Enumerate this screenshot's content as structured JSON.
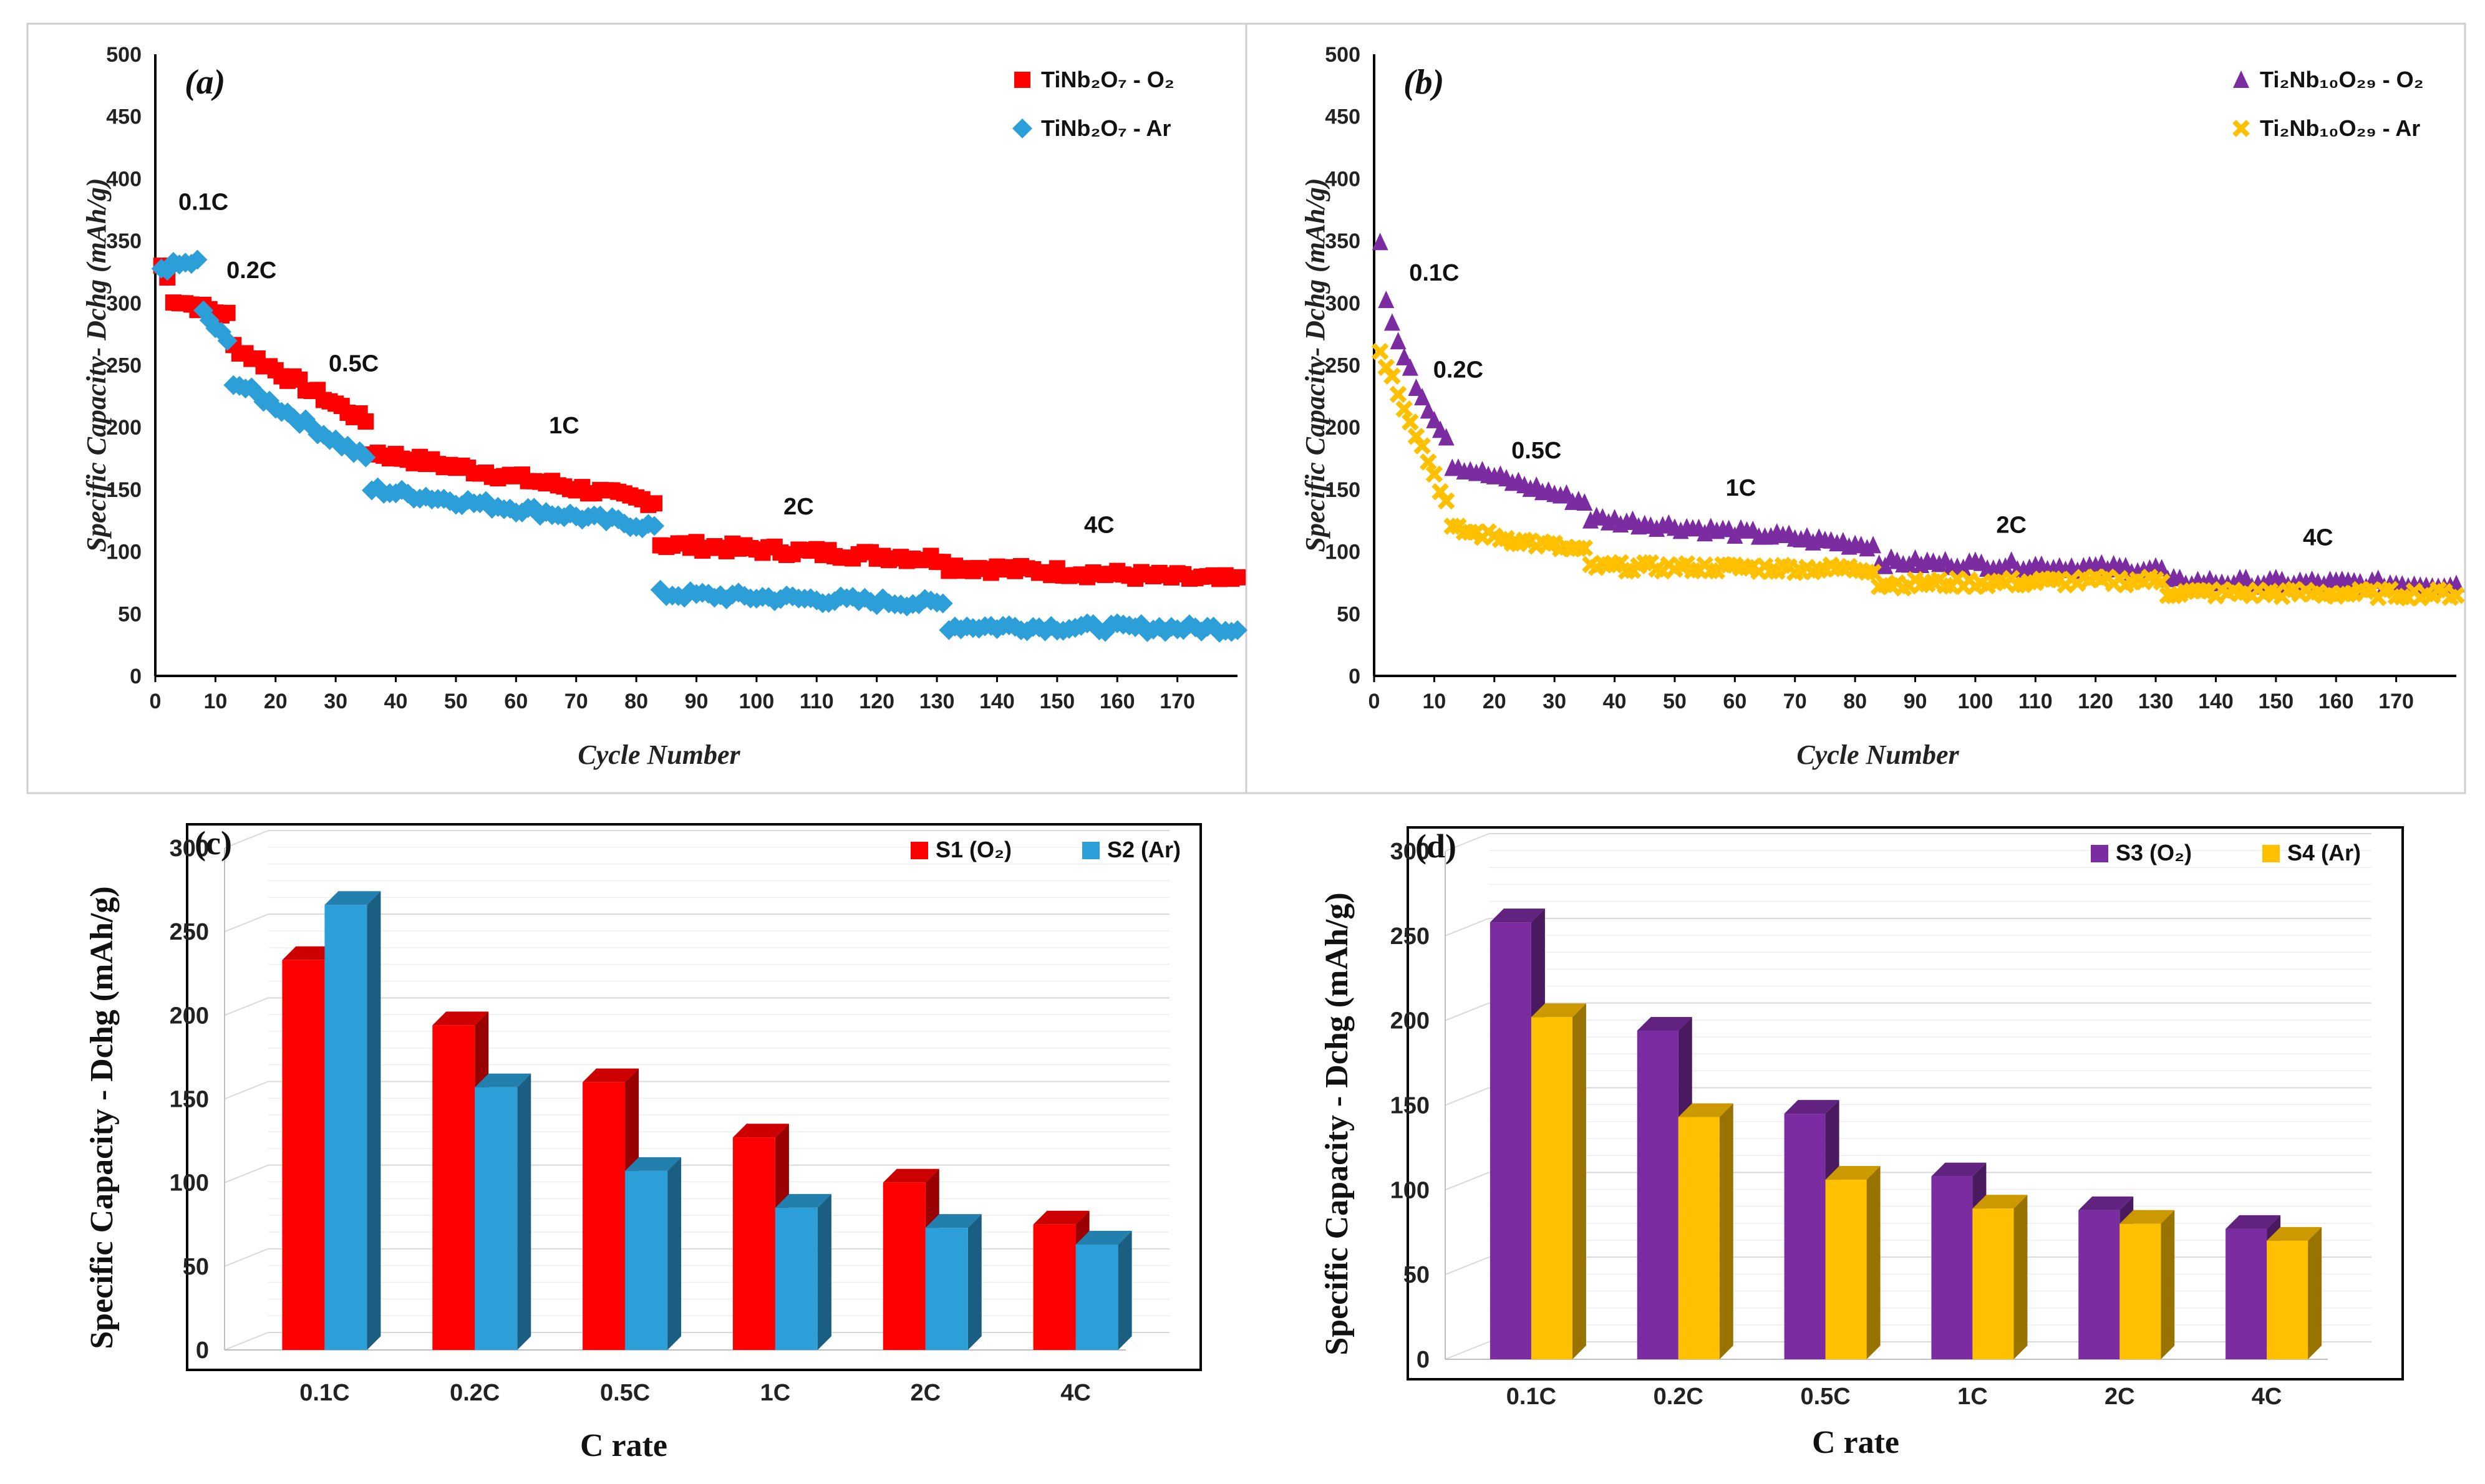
{
  "colors": {
    "red": "#FF0000",
    "blue": "#2C9FD8",
    "purple": "#7B2CA0",
    "orange": "#FFC000",
    "grid": "#D9D9D9",
    "axis": "#000000"
  },
  "chart_data": [
    {
      "id": "a",
      "type": "scatter",
      "panel_label": "(a)",
      "xlabel": "Cycle Number",
      "ylabel": "Specific Capacity- Dchg (mAh/g)",
      "xlim": [
        0,
        180
      ],
      "ylim": [
        0,
        500
      ],
      "x_ticks": [
        0,
        10,
        20,
        30,
        40,
        50,
        60,
        70,
        80,
        90,
        100,
        110,
        120,
        130,
        140,
        150,
        160,
        170
      ],
      "y_ticks": [
        0,
        50,
        100,
        150,
        200,
        250,
        300,
        350,
        400,
        450,
        500
      ],
      "legend": [
        "TiNb₂O₇ - O₂",
        "TiNb₂O₇ - Ar"
      ],
      "legend_position": "top-right",
      "rate_labels": [
        {
          "text": "0.1C",
          "x": 8,
          "y": 375
        },
        {
          "text": "0.2C",
          "x": 16,
          "y": 320
        },
        {
          "text": "0.5C",
          "x": 33,
          "y": 245
        },
        {
          "text": "1C",
          "x": 68,
          "y": 195
        },
        {
          "text": "2C",
          "x": 107,
          "y": 130
        },
        {
          "text": "4C",
          "x": 157,
          "y": 115
        }
      ],
      "series": [
        {
          "name": "TiNb₂O₇ - O₂",
          "marker": "square",
          "color": "#FF0000",
          "segments": [
            {
              "x_start": 1,
              "x_end": 2,
              "y_start": 330,
              "y_end": 320
            },
            {
              "x_start": 3,
              "x_end": 12,
              "y_start": 303,
              "y_end": 290
            },
            {
              "x_start": 13,
              "x_end": 35,
              "y_start": 265,
              "y_end": 205
            },
            {
              "x_start": 36,
              "x_end": 83,
              "y_start": 180,
              "y_end": 140
            },
            {
              "x_start": 84,
              "x_end": 131,
              "y_start": 106,
              "y_end": 94
            },
            {
              "x_start": 132,
              "x_end": 180,
              "y_start": 88,
              "y_end": 77
            }
          ]
        },
        {
          "name": "TiNb₂O₇ - Ar",
          "marker": "diamond",
          "color": "#2C9FD8",
          "segments": [
            {
              "x_start": 1,
              "x_end": 7,
              "y_start": 328,
              "y_end": 333
            },
            {
              "x_start": 8,
              "x_end": 12,
              "y_start": 292,
              "y_end": 268
            },
            {
              "x_start": 13,
              "x_end": 35,
              "y_start": 237,
              "y_end": 175
            },
            {
              "x_start": 36,
              "x_end": 83,
              "y_start": 150,
              "y_end": 120
            },
            {
              "x_start": 84,
              "x_end": 131,
              "y_start": 66,
              "y_end": 58
            },
            {
              "x_start": 132,
              "x_end": 180,
              "y_start": 40,
              "y_end": 38
            }
          ]
        }
      ]
    },
    {
      "id": "b",
      "type": "scatter",
      "panel_label": "(b)",
      "xlabel": "Cycle Number",
      "ylabel": "Specific Capacity- Dchg (mAh/g)",
      "xlim": [
        0,
        180
      ],
      "ylim": [
        0,
        500
      ],
      "x_ticks": [
        0,
        10,
        20,
        30,
        40,
        50,
        60,
        70,
        80,
        90,
        100,
        110,
        120,
        130,
        140,
        150,
        160,
        170
      ],
      "y_ticks": [
        0,
        50,
        100,
        150,
        200,
        250,
        300,
        350,
        400,
        450,
        500
      ],
      "legend": [
        "Ti₂Nb₁₀O₂₉ - O₂",
        "Ti₂Nb₁₀O₂₉ - Ar"
      ],
      "legend_position": "top-right",
      "rate_labels": [
        {
          "text": "0.1C",
          "x": 10,
          "y": 318
        },
        {
          "text": "0.2C",
          "x": 14,
          "y": 240
        },
        {
          "text": "0.5C",
          "x": 27,
          "y": 175
        },
        {
          "text": "1C",
          "x": 61,
          "y": 145
        },
        {
          "text": "2C",
          "x": 106,
          "y": 115
        },
        {
          "text": "4C",
          "x": 157,
          "y": 105
        }
      ],
      "series": [
        {
          "name": "Ti₂Nb₁₀O₂₉ - O₂",
          "marker": "triangle",
          "color": "#7B2CA0",
          "segments": [
            {
              "x_start": 1,
              "x_end": 12,
              "y_start": 352,
              "y_end": 193
            },
            {
              "x_start": 13,
              "x_end": 35,
              "y_start": 170,
              "y_end": 140
            },
            {
              "x_start": 36,
              "x_end": 83,
              "y_start": 127,
              "y_end": 105
            },
            {
              "x_start": 84,
              "x_end": 131,
              "y_start": 92,
              "y_end": 86
            },
            {
              "x_start": 132,
              "x_end": 180,
              "y_start": 76,
              "y_end": 74
            }
          ]
        },
        {
          "name": "Ti₂Nb₁₀O₂₉ - Ar",
          "marker": "x",
          "color": "#FFC000",
          "segments": [
            {
              "x_start": 1,
              "x_end": 12,
              "y_start": 262,
              "y_end": 140
            },
            {
              "x_start": 13,
              "x_end": 35,
              "y_start": 118,
              "y_end": 100
            },
            {
              "x_start": 36,
              "x_end": 83,
              "y_start": 88,
              "y_end": 86
            },
            {
              "x_start": 84,
              "x_end": 131,
              "y_start": 74,
              "y_end": 77
            },
            {
              "x_start": 132,
              "x_end": 180,
              "y_start": 67,
              "y_end": 66
            }
          ]
        }
      ]
    },
    {
      "id": "c",
      "type": "bar",
      "panel_label": "(c)",
      "xlabel": "C rate",
      "ylabel": "Specific Capacity - Dchg (mAh/g)",
      "ylim": [
        0,
        300
      ],
      "y_ticks": [
        0,
        50,
        100,
        150,
        200,
        250,
        300
      ],
      "categories": [
        "0.1C",
        "0.2C",
        "0.5C",
        "1C",
        "2C",
        "4C"
      ],
      "legend_position": "top-right",
      "series": [
        {
          "name": "S1 (O₂)",
          "color": "#FF0000",
          "values": [
            233,
            194,
            160,
            127,
            100,
            75
          ]
        },
        {
          "name": "S2 (Ar)",
          "color": "#2C9FD8",
          "values": [
            266,
            157,
            107,
            85,
            73,
            63
          ]
        }
      ]
    },
    {
      "id": "d",
      "type": "bar",
      "panel_label": "(d)",
      "xlabel": "C rate",
      "ylabel": "Specific Capacity - Dchg (mAh/g)",
      "ylim": [
        0,
        300
      ],
      "y_ticks": [
        0,
        50,
        100,
        150,
        200,
        250,
        300
      ],
      "categories": [
        "0.1C",
        "0.2C",
        "0.5C",
        "1C",
        "2C",
        "4C"
      ],
      "legend_position": "top-right",
      "series": [
        {
          "name": "S3 (O₂)",
          "color": "#7B2CA0",
          "values": [
            258,
            194,
            145,
            108,
            88,
            77
          ]
        },
        {
          "name": "S4 (Ar)",
          "color": "#FFC000",
          "values": [
            202,
            143,
            106,
            89,
            80,
            70
          ]
        }
      ]
    }
  ]
}
